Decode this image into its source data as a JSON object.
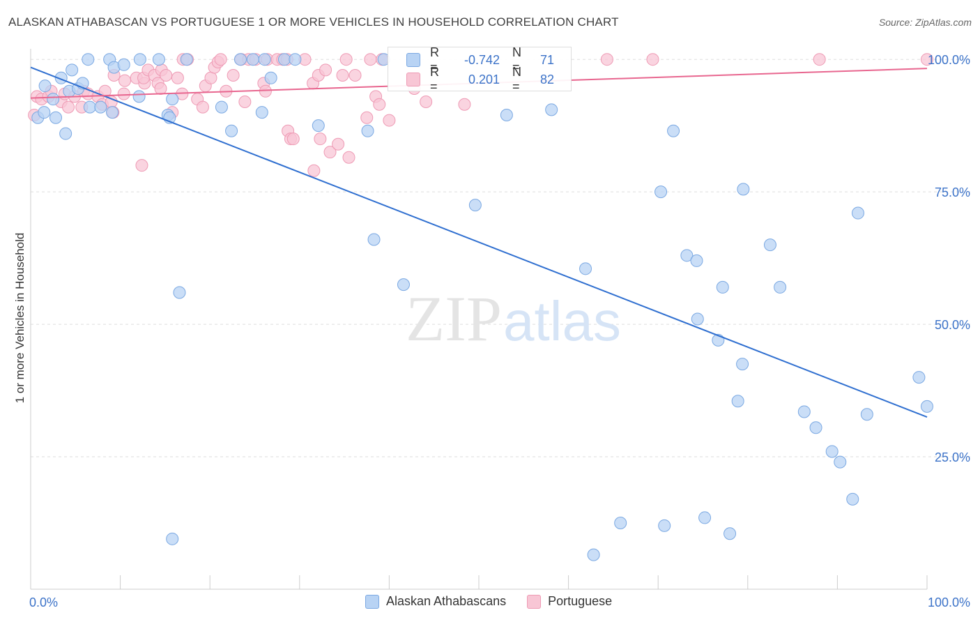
{
  "title": "ALASKAN ATHABASCAN VS PORTUGUESE 1 OR MORE VEHICLES IN HOUSEHOLD CORRELATION CHART",
  "source": "Source: ZipAtlas.com",
  "watermark": {
    "zip": "ZIP",
    "atlas": "atlas"
  },
  "colors": {
    "blue_fill": "#b8d3f4",
    "blue_stroke": "#7aa8e2",
    "blue_line": "#2f6fd0",
    "pink_fill": "#f8c6d5",
    "pink_stroke": "#ee9ab4",
    "pink_line": "#e8668f",
    "tick_label": "#3b72c8",
    "grid": "#dddddd"
  },
  "stats": [
    {
      "r_label": "R =",
      "r": "-0.742",
      "n_label": "N =",
      "n": "71",
      "series": "blue"
    },
    {
      "r_label": "R =",
      "r": "0.201",
      "n_label": "N =",
      "n": "82",
      "series": "pink"
    }
  ],
  "chart_data": {
    "type": "scatter",
    "title": "ALASKAN ATHABASCAN VS PORTUGUESE 1 OR MORE VEHICLES IN HOUSEHOLD CORRELATION CHART",
    "xlabel": "",
    "ylabel": "1 or more Vehicles in Household",
    "xlim": [
      0,
      100
    ],
    "ylim": [
      0,
      102
    ],
    "x_ticks_labels": [
      "0.0%",
      "100.0%"
    ],
    "y_ticks": [
      25,
      50,
      75,
      100
    ],
    "y_tick_labels": [
      "25.0%",
      "50.0%",
      "75.0%",
      "100.0%"
    ],
    "grid": "horizontal dashed",
    "legend": "bottom-center",
    "series": [
      {
        "name": "Alaskan Athabascans",
        "color": "#b8d3f4",
        "trend": {
          "x": [
            0,
            100
          ],
          "y": [
            98.5,
            32.5
          ]
        },
        "points": [
          [
            0.8,
            89
          ],
          [
            1.5,
            90
          ],
          [
            1.6,
            95
          ],
          [
            2.5,
            92.5
          ],
          [
            2.8,
            89
          ],
          [
            3.4,
            96.5
          ],
          [
            3.9,
            86
          ],
          [
            4.3,
            94
          ],
          [
            4.6,
            98
          ],
          [
            5.3,
            94.5
          ],
          [
            5.8,
            95.5
          ],
          [
            6.4,
            100
          ],
          [
            6.6,
            91
          ],
          [
            7.8,
            91
          ],
          [
            8.8,
            100
          ],
          [
            9.1,
            90
          ],
          [
            9.3,
            98.5
          ],
          [
            10.4,
            99
          ],
          [
            12.1,
            93
          ],
          [
            12.2,
            100
          ],
          [
            14.3,
            100
          ],
          [
            15.3,
            89.5
          ],
          [
            15.5,
            89
          ],
          [
            15.8,
            92.5
          ],
          [
            16.6,
            56
          ],
          [
            15.8,
            9.5
          ],
          [
            17.4,
            100
          ],
          [
            21.3,
            91
          ],
          [
            22.4,
            86.5
          ],
          [
            23.4,
            100
          ],
          [
            24.8,
            100
          ],
          [
            25.8,
            90
          ],
          [
            26.1,
            100
          ],
          [
            26.8,
            96.5
          ],
          [
            28.3,
            100
          ],
          [
            29.5,
            100
          ],
          [
            32.1,
            87.5
          ],
          [
            37.6,
            86.5
          ],
          [
            38.3,
            66
          ],
          [
            39.4,
            100
          ],
          [
            41.6,
            57.5
          ],
          [
            49.6,
            72.5
          ],
          [
            53.1,
            89.5
          ],
          [
            58.1,
            90.5
          ],
          [
            61.9,
            60.5
          ],
          [
            62.8,
            6.5
          ],
          [
            65.8,
            12.5
          ],
          [
            70.3,
            75
          ],
          [
            70.7,
            12
          ],
          [
            71.7,
            86.5
          ],
          [
            73.2,
            63
          ],
          [
            74.3,
            62
          ],
          [
            74.4,
            51
          ],
          [
            75.2,
            13.5
          ],
          [
            76.7,
            47
          ],
          [
            77.2,
            57
          ],
          [
            78.0,
            10.5
          ],
          [
            78.9,
            35.5
          ],
          [
            79.4,
            42.5
          ],
          [
            79.5,
            75.5
          ],
          [
            82.5,
            65
          ],
          [
            83.6,
            57
          ],
          [
            86.3,
            33.5
          ],
          [
            87.6,
            30.5
          ],
          [
            89.4,
            26
          ],
          [
            90.3,
            24
          ],
          [
            91.7,
            17
          ],
          [
            92.3,
            71
          ],
          [
            93.3,
            33
          ],
          [
            99.1,
            40
          ],
          [
            100.0,
            34.5
          ]
        ]
      },
      {
        "name": "Portuguese",
        "color": "#f8c6d5",
        "trend": {
          "x": [
            0,
            100
          ],
          "y": [
            92.7,
            98.3
          ]
        },
        "points": [
          [
            0.4,
            89.5
          ],
          [
            0.7,
            93
          ],
          [
            1.2,
            92.5
          ],
          [
            2.0,
            93
          ],
          [
            2.3,
            94
          ],
          [
            3.4,
            92
          ],
          [
            3.8,
            93.5
          ],
          [
            4.2,
            91
          ],
          [
            4.9,
            93
          ],
          [
            5.7,
            91
          ],
          [
            5.9,
            94
          ],
          [
            6.4,
            93.5
          ],
          [
            7.5,
            93
          ],
          [
            8.0,
            91.5
          ],
          [
            8.3,
            94
          ],
          [
            9.0,
            92
          ],
          [
            9.2,
            90
          ],
          [
            9.3,
            97
          ],
          [
            10.4,
            93.5
          ],
          [
            10.5,
            96
          ],
          [
            11.8,
            96.5
          ],
          [
            12.4,
            80
          ],
          [
            12.7,
            95.5
          ],
          [
            12.6,
            96.5
          ],
          [
            13.1,
            98
          ],
          [
            13.8,
            97
          ],
          [
            14.2,
            95.5
          ],
          [
            14.5,
            94.5
          ],
          [
            14.6,
            98
          ],
          [
            15.1,
            97
          ],
          [
            15.8,
            90
          ],
          [
            16.4,
            96.5
          ],
          [
            16.9,
            93.5
          ],
          [
            17.0,
            100
          ],
          [
            17.5,
            100
          ],
          [
            18.6,
            92.5
          ],
          [
            19.2,
            91
          ],
          [
            19.5,
            95
          ],
          [
            20.1,
            96.5
          ],
          [
            20.5,
            98.5
          ],
          [
            20.9,
            99.5
          ],
          [
            21.2,
            100
          ],
          [
            21.8,
            94
          ],
          [
            22.6,
            97
          ],
          [
            23.5,
            100
          ],
          [
            23.9,
            92
          ],
          [
            24.3,
            100
          ],
          [
            25.1,
            100
          ],
          [
            26.0,
            95.5
          ],
          [
            26.2,
            94
          ],
          [
            26.4,
            100
          ],
          [
            27.5,
            100
          ],
          [
            28.1,
            100
          ],
          [
            28.7,
            86.5
          ],
          [
            29.0,
            85
          ],
          [
            29.3,
            85
          ],
          [
            30.6,
            100
          ],
          [
            31.5,
            95.5
          ],
          [
            31.6,
            79
          ],
          [
            32.1,
            97
          ],
          [
            32.3,
            85
          ],
          [
            32.9,
            98
          ],
          [
            33.4,
            82.5
          ],
          [
            34.3,
            84
          ],
          [
            34.8,
            97
          ],
          [
            35.2,
            100
          ],
          [
            35.5,
            81.5
          ],
          [
            37.5,
            89
          ],
          [
            37.9,
            100
          ],
          [
            38.5,
            93
          ],
          [
            38.9,
            91.5
          ],
          [
            39.2,
            100
          ],
          [
            40.0,
            88.5
          ],
          [
            42.8,
            94.5
          ],
          [
            44.1,
            92
          ],
          [
            48.4,
            91.5
          ],
          [
            64.3,
            100
          ],
          [
            69.4,
            100
          ],
          [
            88.0,
            100
          ],
          [
            100.0,
            100
          ],
          [
            36.2,
            97
          ],
          [
            28.6,
            100
          ]
        ]
      }
    ]
  },
  "legend": {
    "items": [
      "Alaskan Athabascans",
      "Portuguese"
    ]
  }
}
